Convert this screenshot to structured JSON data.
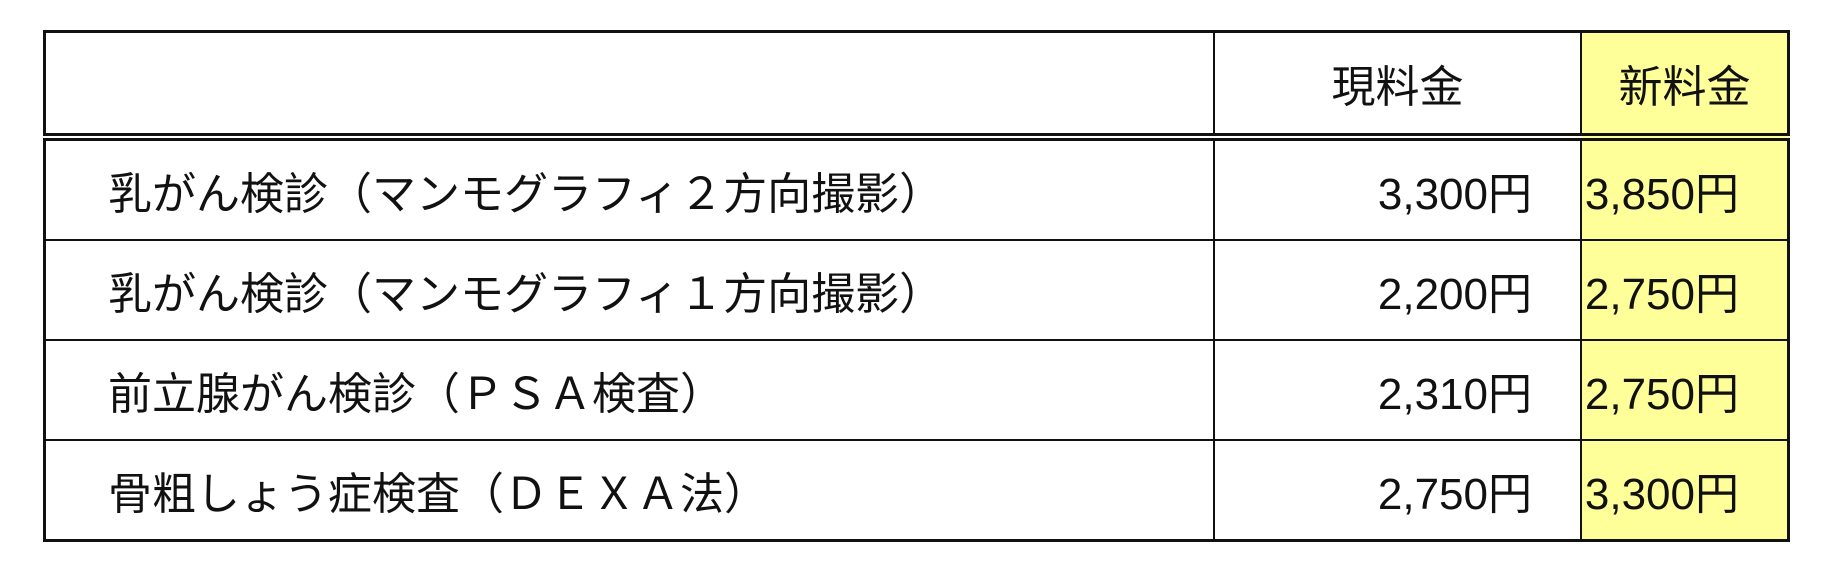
{
  "header": {
    "item": "",
    "current": "現料金",
    "new": "新料金"
  },
  "colors": {
    "new_column_bg": "#ffff99"
  },
  "rows": [
    {
      "item": "乳がん検診（マンモグラフィ２方向撮影）",
      "current": "3,300円",
      "new": "3,850円"
    },
    {
      "item": "乳がん検診（マンモグラフィ１方向撮影）",
      "current": "2,200円",
      "new": "2,750円"
    },
    {
      "item": "前立腺がん検診（ＰＳＡ検査）",
      "current": "2,310円",
      "new": "2,750円"
    },
    {
      "item": "骨粗しょう症検査（ＤＥＸＡ法）",
      "current": "2,750円",
      "new": "3,300円"
    }
  ]
}
